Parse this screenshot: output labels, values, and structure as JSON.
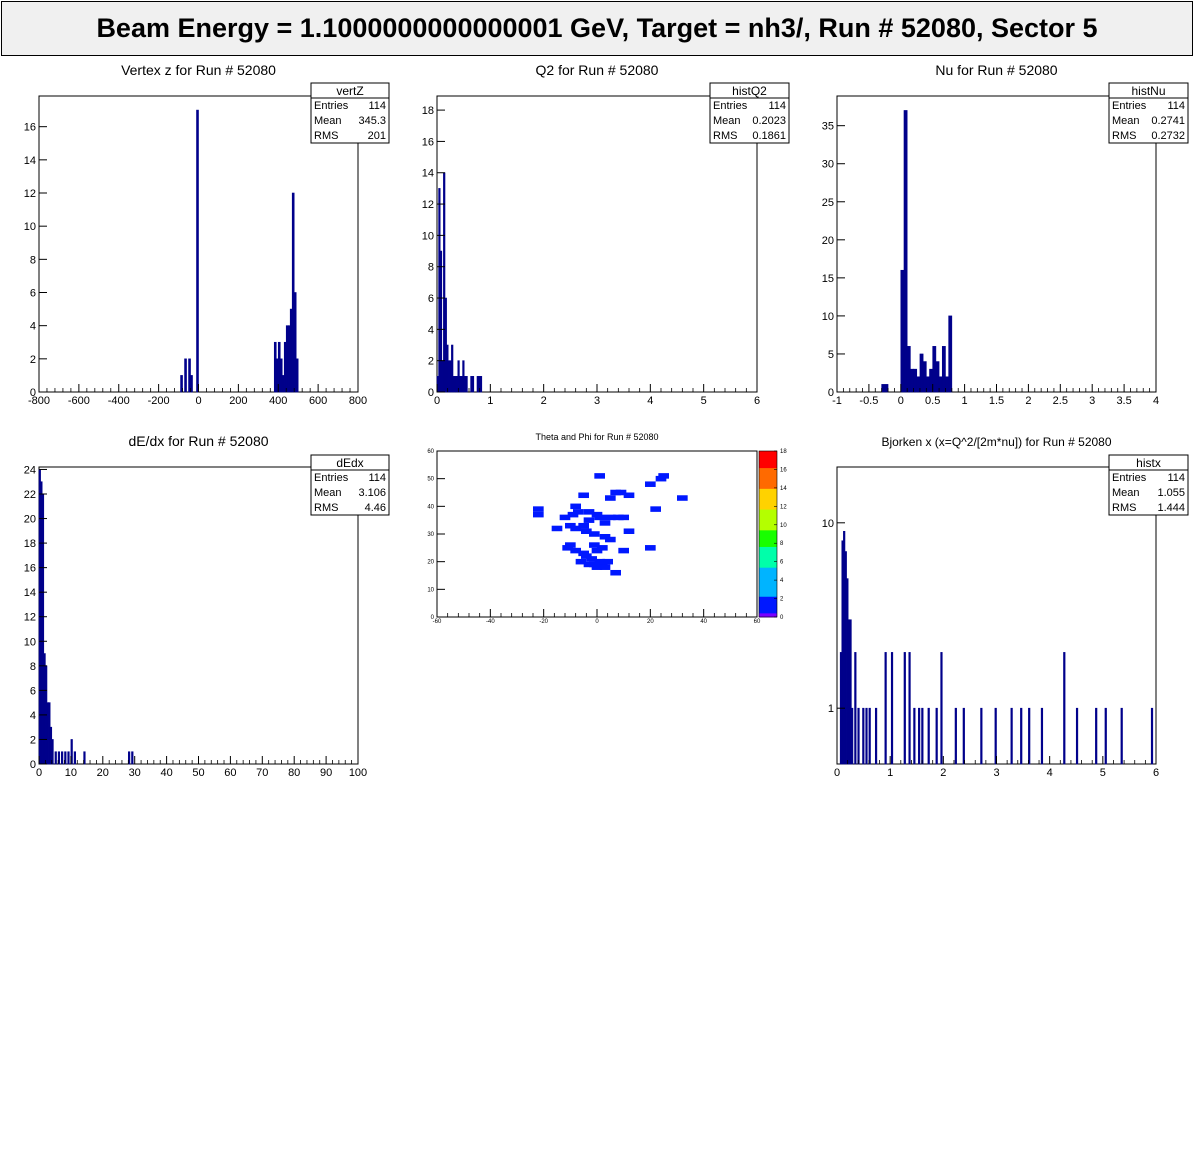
{
  "banner": {
    "title": "Beam Energy = 1.1000000000000001 GeV, Target = nh3/, Run # 52080, Sector 5"
  },
  "chart_data": [
    {
      "type": "bar",
      "id": "vertz",
      "title": "Vertex z for Run # 52080",
      "xlabel": "",
      "ylabel": "",
      "xlim": [
        -800,
        800
      ],
      "ylim": [
        0,
        17.85
      ],
      "xticks": [
        -800,
        -600,
        -400,
        -200,
        0,
        200,
        400,
        600,
        800
      ],
      "yticks": [
        0,
        2,
        4,
        6,
        8,
        10,
        12,
        14,
        16
      ],
      "stats": {
        "name": "vertZ",
        "rows": [
          [
            "Entries",
            "114"
          ],
          [
            "Mean",
            "345.3"
          ],
          [
            "RMS",
            "201"
          ]
        ]
      },
      "bins": [
        [
          -90,
          -80,
          1
        ],
        [
          -70,
          -60,
          2
        ],
        [
          -50,
          -40,
          2
        ],
        [
          -40,
          -30,
          1
        ],
        [
          -10,
          0,
          17
        ],
        [
          380,
          390,
          3
        ],
        [
          390,
          400,
          2
        ],
        [
          400,
          410,
          3
        ],
        [
          410,
          420,
          2
        ],
        [
          420,
          430,
          1
        ],
        [
          430,
          440,
          3
        ],
        [
          440,
          450,
          4
        ],
        [
          450,
          460,
          4
        ],
        [
          460,
          470,
          5
        ],
        [
          470,
          480,
          12
        ],
        [
          480,
          490,
          6
        ],
        [
          490,
          500,
          2
        ]
      ]
    },
    {
      "type": "bar",
      "id": "q2",
      "title": "Q2 for Run # 52080",
      "xlabel": "",
      "ylabel": "",
      "xlim": [
        0,
        6
      ],
      "ylim": [
        0,
        18.9
      ],
      "xticks": [
        0,
        1,
        2,
        3,
        4,
        5,
        6
      ],
      "yticks": [
        0,
        2,
        4,
        6,
        8,
        10,
        12,
        14,
        16,
        18
      ],
      "stats": {
        "name": "histQ2",
        "rows": [
          [
            "Entries",
            "114"
          ],
          [
            "Mean",
            "0.2023"
          ],
          [
            "RMS",
            "0.1861"
          ]
        ]
      },
      "bins": [
        [
          0.0,
          0.03,
          1
        ],
        [
          0.03,
          0.06,
          13
        ],
        [
          0.06,
          0.09,
          9
        ],
        [
          0.09,
          0.12,
          2
        ],
        [
          0.12,
          0.15,
          14
        ],
        [
          0.15,
          0.18,
          6
        ],
        [
          0.18,
          0.21,
          3
        ],
        [
          0.21,
          0.24,
          2
        ],
        [
          0.24,
          0.27,
          2
        ],
        [
          0.27,
          0.3,
          3
        ],
        [
          0.3,
          0.33,
          1
        ],
        [
          0.33,
          0.36,
          1
        ],
        [
          0.36,
          0.39,
          1
        ],
        [
          0.39,
          0.42,
          2
        ],
        [
          0.42,
          0.45,
          1
        ],
        [
          0.45,
          0.48,
          1
        ],
        [
          0.48,
          0.51,
          2
        ],
        [
          0.51,
          0.54,
          1
        ],
        [
          0.54,
          0.57,
          1
        ],
        [
          0.63,
          0.66,
          1
        ],
        [
          0.66,
          0.69,
          1
        ],
        [
          0.75,
          0.78,
          1
        ],
        [
          0.78,
          0.81,
          1
        ],
        [
          0.81,
          0.84,
          1
        ]
      ]
    },
    {
      "type": "bar",
      "id": "nu",
      "title": "Nu for Run # 52080",
      "xlabel": "",
      "ylabel": "",
      "xlim": [
        -1,
        4
      ],
      "ylim": [
        0,
        38.9
      ],
      "xticks": [
        -1,
        -0.5,
        0,
        0.5,
        1,
        1.5,
        2,
        2.5,
        3,
        3.5,
        4
      ],
      "yticks": [
        0,
        5,
        10,
        15,
        20,
        25,
        30,
        35
      ],
      "stats": {
        "name": "histNu",
        "rows": [
          [
            "Entries",
            "114"
          ],
          [
            "Mean",
            "0.2741"
          ],
          [
            "RMS",
            "0.2732"
          ]
        ]
      },
      "bins": [
        [
          -0.3,
          -0.2,
          1
        ],
        [
          0.0,
          0.05,
          16
        ],
        [
          0.05,
          0.1,
          37
        ],
        [
          0.1,
          0.15,
          6
        ],
        [
          0.15,
          0.2,
          3
        ],
        [
          0.2,
          0.25,
          3
        ],
        [
          0.25,
          0.3,
          2
        ],
        [
          0.3,
          0.35,
          5
        ],
        [
          0.35,
          0.4,
          4
        ],
        [
          0.4,
          0.45,
          2
        ],
        [
          0.45,
          0.5,
          3
        ],
        [
          0.5,
          0.55,
          6
        ],
        [
          0.55,
          0.6,
          4
        ],
        [
          0.6,
          0.65,
          2
        ],
        [
          0.65,
          0.7,
          6
        ],
        [
          0.7,
          0.75,
          2
        ],
        [
          0.75,
          0.8,
          10
        ]
      ]
    },
    {
      "type": "bar",
      "id": "dedx",
      "title": "dE/dx for Run # 52080",
      "xlabel": "",
      "ylabel": "",
      "xlim": [
        0,
        100
      ],
      "ylim": [
        0,
        24.2
      ],
      "xticks": [
        0,
        10,
        20,
        30,
        40,
        50,
        60,
        70,
        80,
        90,
        100
      ],
      "yticks": [
        0,
        2,
        4,
        6,
        8,
        10,
        12,
        14,
        16,
        18,
        20,
        22,
        24
      ],
      "stats": {
        "name": "dEdx",
        "rows": [
          [
            "Entries",
            "114"
          ],
          [
            "Mean",
            "3.106"
          ],
          [
            "RMS",
            "4.46"
          ]
        ]
      },
      "bins": [
        [
          0,
          0.5,
          24
        ],
        [
          0.5,
          1,
          23
        ],
        [
          1,
          1.5,
          22
        ],
        [
          1.5,
          2,
          9
        ],
        [
          2,
          2.5,
          8
        ],
        [
          2.5,
          3,
          5
        ],
        [
          3,
          3.5,
          5
        ],
        [
          3.5,
          4,
          3
        ],
        [
          4,
          4.5,
          2
        ],
        [
          5,
          5.5,
          1
        ],
        [
          6,
          6.5,
          1
        ],
        [
          7,
          7.5,
          1
        ],
        [
          8,
          8.5,
          1
        ],
        [
          9,
          9.5,
          1
        ],
        [
          10,
          10.5,
          2
        ],
        [
          11,
          11.5,
          1
        ],
        [
          14,
          14.5,
          1
        ],
        [
          28,
          28.5,
          1
        ],
        [
          29,
          29.5,
          1
        ]
      ]
    },
    {
      "type": "heatmap",
      "id": "thetaphi",
      "title": "Theta and Phi for Run # 52080",
      "xlabel": "",
      "ylabel": "",
      "xlim": [
        -60,
        60
      ],
      "ylim": [
        0,
        60
      ],
      "xticks": [
        -60,
        -40,
        -20,
        0,
        20,
        40,
        60
      ],
      "yticks": [
        0,
        10,
        20,
        30,
        40,
        50,
        60
      ],
      "zlim": [
        0,
        18
      ],
      "zticks": [
        0,
        2,
        4,
        6,
        8,
        10,
        12,
        14,
        16,
        18
      ],
      "points": [
        [
          1,
          51,
          1
        ],
        [
          5,
          43,
          1
        ],
        [
          7,
          45,
          1
        ],
        [
          9,
          45,
          1
        ],
        [
          -5,
          44,
          1
        ],
        [
          12,
          44,
          1
        ],
        [
          -8,
          40,
          1
        ],
        [
          -7,
          38,
          1
        ],
        [
          -9,
          37,
          1
        ],
        [
          -3,
          38,
          1
        ],
        [
          0,
          37,
          1
        ],
        [
          1,
          36,
          1
        ],
        [
          5,
          36,
          1
        ],
        [
          8,
          36,
          1
        ],
        [
          10,
          36,
          1
        ],
        [
          -22,
          39,
          1
        ],
        [
          -22,
          37,
          1
        ],
        [
          -12,
          36,
          1
        ],
        [
          -3,
          35,
          1
        ],
        [
          3,
          34,
          1
        ],
        [
          -10,
          33,
          1
        ],
        [
          -5,
          33,
          1
        ],
        [
          -15,
          32,
          1
        ],
        [
          -8,
          32,
          1
        ],
        [
          -4,
          31,
          1
        ],
        [
          -1,
          30,
          1
        ],
        [
          3,
          29,
          1
        ],
        [
          5,
          28,
          1
        ],
        [
          12,
          31,
          1
        ],
        [
          22,
          39,
          1
        ],
        [
          24,
          50,
          1
        ],
        [
          20,
          48,
          1
        ],
        [
          25,
          51,
          1
        ],
        [
          32,
          43,
          1
        ],
        [
          -10,
          26,
          1
        ],
        [
          -11,
          25,
          1
        ],
        [
          -8,
          24,
          1
        ],
        [
          -5,
          23,
          1
        ],
        [
          -1,
          26,
          1
        ],
        [
          0,
          24,
          1
        ],
        [
          2,
          25,
          1
        ],
        [
          -4,
          22,
          1
        ],
        [
          -6,
          20,
          1
        ],
        [
          -3,
          19,
          1
        ],
        [
          -1,
          19,
          1
        ],
        [
          0,
          18,
          1
        ],
        [
          2,
          19,
          1
        ],
        [
          4,
          20,
          1
        ],
        [
          7,
          16,
          1
        ],
        [
          20,
          25,
          1
        ],
        [
          10,
          24,
          1
        ],
        [
          -2,
          21,
          1
        ],
        [
          1,
          20,
          1
        ],
        [
          3,
          18,
          1
        ]
      ]
    },
    {
      "type": "bar",
      "id": "bjorkenx",
      "title": "Bjorken x  (x=Q^2/[2m*nu]) for Run # 52080",
      "xlabel": "",
      "ylabel": "",
      "xlim": [
        0,
        6
      ],
      "ylim": [
        0.5,
        20
      ],
      "log_y": true,
      "xticks": [
        0,
        1,
        2,
        3,
        4,
        5,
        6
      ],
      "yticks": [
        1,
        10
      ],
      "stats": {
        "name": "histx",
        "rows": [
          [
            "Entries",
            "114"
          ],
          [
            "Mean",
            "1.055"
          ],
          [
            "RMS",
            "1.444"
          ]
        ]
      },
      "bins": [
        [
          0.06,
          0.09,
          2
        ],
        [
          0.09,
          0.12,
          8
        ],
        [
          0.12,
          0.15,
          9
        ],
        [
          0.15,
          0.18,
          7
        ],
        [
          0.18,
          0.21,
          5
        ],
        [
          0.21,
          0.24,
          3
        ],
        [
          0.24,
          0.27,
          3
        ],
        [
          0.27,
          0.3,
          1
        ],
        [
          0.33,
          0.36,
          2
        ],
        [
          0.39,
          0.42,
          1
        ],
        [
          0.48,
          0.51,
          1
        ],
        [
          0.54,
          0.57,
          1
        ],
        [
          0.6,
          0.63,
          1
        ],
        [
          0.72,
          0.75,
          1
        ],
        [
          0.9,
          0.93,
          2
        ],
        [
          1.02,
          1.05,
          2
        ],
        [
          1.26,
          1.29,
          2
        ],
        [
          1.35,
          1.38,
          2
        ],
        [
          1.44,
          1.47,
          1
        ],
        [
          1.53,
          1.56,
          1
        ],
        [
          1.59,
          1.62,
          1
        ],
        [
          1.71,
          1.74,
          1
        ],
        [
          1.86,
          1.89,
          1
        ],
        [
          1.95,
          1.98,
          2
        ],
        [
          2.22,
          2.25,
          1
        ],
        [
          2.37,
          2.4,
          1
        ],
        [
          2.7,
          2.73,
          1
        ],
        [
          2.97,
          3.0,
          1
        ],
        [
          3.27,
          3.3,
          1
        ],
        [
          3.45,
          3.48,
          1
        ],
        [
          3.6,
          3.63,
          1
        ],
        [
          3.84,
          3.87,
          1
        ],
        [
          4.26,
          4.29,
          2
        ],
        [
          4.5,
          4.53,
          1
        ],
        [
          4.86,
          4.89,
          1
        ],
        [
          5.04,
          5.07,
          1
        ],
        [
          5.34,
          5.37,
          1
        ],
        [
          5.91,
          5.94,
          1
        ]
      ]
    }
  ]
}
